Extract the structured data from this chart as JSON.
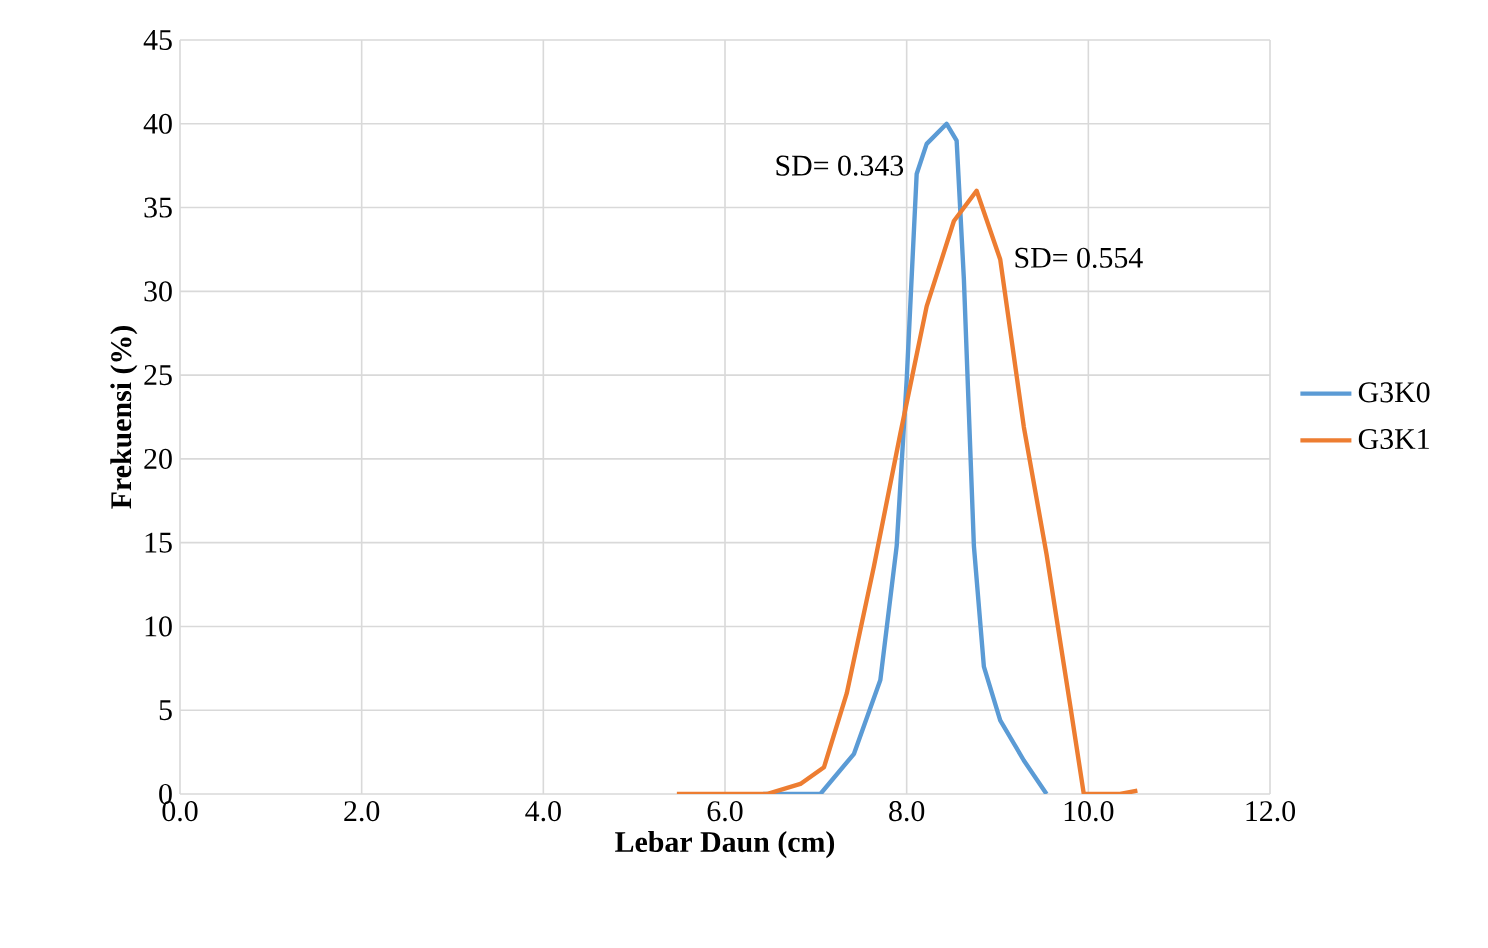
{
  "chart_data": {
    "type": "line",
    "xlabel": "Lebar Daun (cm)",
    "ylabel": "Frekuensi (%)",
    "xlim": [
      0,
      12
    ],
    "xticks": [
      {
        "value": 0,
        "label": "0.0"
      },
      {
        "value": 2,
        "label": "2.0"
      },
      {
        "value": 4,
        "label": "4.0"
      },
      {
        "value": 6,
        "label": "6.0"
      },
      {
        "value": 8,
        "label": "8.0"
      },
      {
        "value": 10,
        "label": "10.0"
      },
      {
        "value": 12,
        "label": "12.0"
      }
    ],
    "ylim": [
      0,
      45
    ],
    "yticks": [
      0,
      5,
      10,
      15,
      20,
      25,
      30,
      35,
      40,
      45
    ],
    "grid": true,
    "legend": "right",
    "marker": "none",
    "line_style": "solid",
    "series": [
      {
        "name": "G3K0",
        "color": "#5b9bd5",
        "x": [
          6.42,
          7.05,
          7.42,
          7.71,
          7.89,
          8.0,
          8.11,
          8.22,
          8.44,
          8.55,
          8.63,
          8.74,
          8.85,
          9.03,
          9.29,
          9.54
        ],
        "values": [
          0,
          0,
          2.4,
          6.8,
          14.8,
          24.7,
          37.0,
          38.8,
          40.0,
          39.0,
          30.7,
          14.8,
          7.6,
          4.4,
          2.0,
          0
        ]
      },
      {
        "name": "G3K1",
        "color": "#ed7d31",
        "x": [
          5.47,
          6.02,
          6.46,
          6.83,
          7.09,
          7.34,
          7.64,
          7.93,
          8.22,
          8.52,
          8.77,
          9.03,
          9.29,
          9.54,
          9.8,
          9.95,
          10.35,
          10.54
        ],
        "values": [
          0,
          0,
          0,
          0.6,
          1.6,
          6.0,
          13.6,
          21.5,
          29.1,
          34.2,
          36.0,
          31.9,
          21.9,
          14.3,
          5.3,
          0,
          0,
          0.2
        ]
      }
    ],
    "annotations": [
      {
        "text": "SD= 0.343",
        "x": 8.0,
        "y": 37.5
      },
      {
        "text": "SD= 0.554",
        "x": 9.15,
        "y": 32
      }
    ]
  }
}
